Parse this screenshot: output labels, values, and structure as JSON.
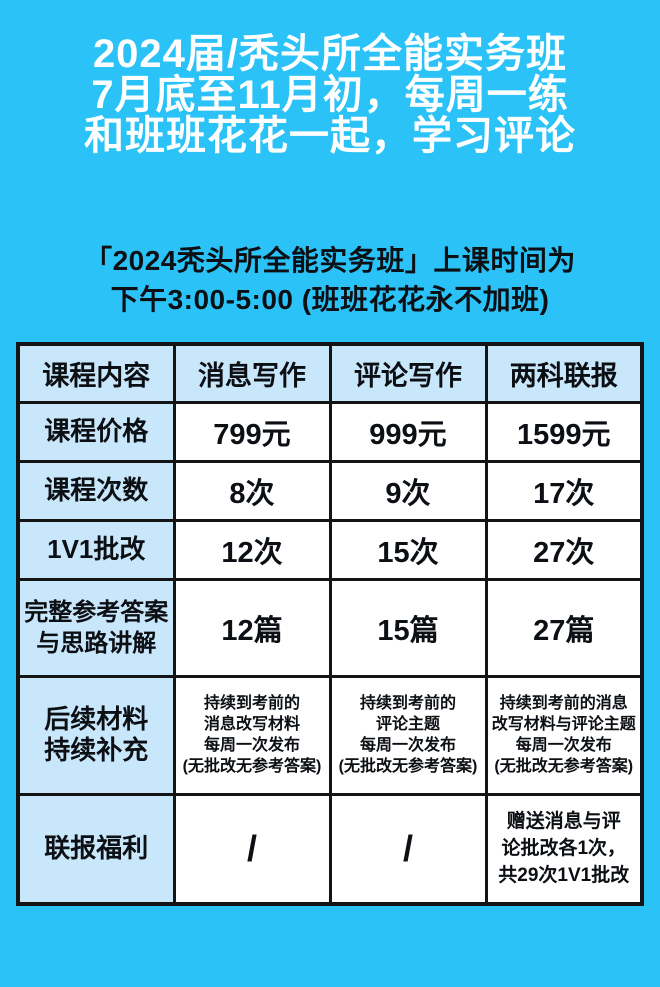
{
  "colors": {
    "background": "#2BC3F7",
    "title_text": "#FFFFFF",
    "body_text": "#0C0F13",
    "table_border": "#141414",
    "label_cell_bg": "#C9E7FA",
    "value_cell_bg": "#FFFFFF"
  },
  "header": {
    "lines": [
      "2024届/秃头所全能实务班",
      "7月底至11月初，每周一练",
      "和班班花花一起，学习评论"
    ]
  },
  "schedule": {
    "lines": [
      "「2024秃头所全能实务班」上课时间为",
      "下午3:00-5:00 (班班花花永不加班)"
    ]
  },
  "table": {
    "columns": [
      "课程内容",
      "消息写作",
      "评论写作",
      "两科联报"
    ],
    "rows": [
      {
        "label": "课程价格",
        "values": [
          "799元",
          "999元",
          "1599元"
        ]
      },
      {
        "label": "课程次数",
        "values": [
          "8次",
          "9次",
          "17次"
        ]
      },
      {
        "label": "1V1批改",
        "values": [
          "12次",
          "15次",
          "27次"
        ]
      },
      {
        "label_lines": [
          "完整参考答案",
          "与思路讲解"
        ],
        "values": [
          "12篇",
          "15篇",
          "27篇"
        ]
      },
      {
        "label_lines": [
          "后续材料",
          "持续补充"
        ],
        "cells": [
          [
            "持续到考前的",
            "消息改写材料",
            "每周一次发布",
            "(无批改无参考答案)"
          ],
          [
            "持续到考前的",
            "评论主题",
            "每周一次发布",
            "(无批改无参考答案)"
          ],
          [
            "持续到考前的消息",
            "改写材料与评论主题",
            "每周一次发布",
            "(无批改无参考答案)"
          ]
        ]
      },
      {
        "label": "联报福利",
        "slash": "/",
        "bonus_lines": [
          "赠送消息与评",
          "论批改各1次，",
          "共29次1V1批改"
        ]
      }
    ]
  }
}
